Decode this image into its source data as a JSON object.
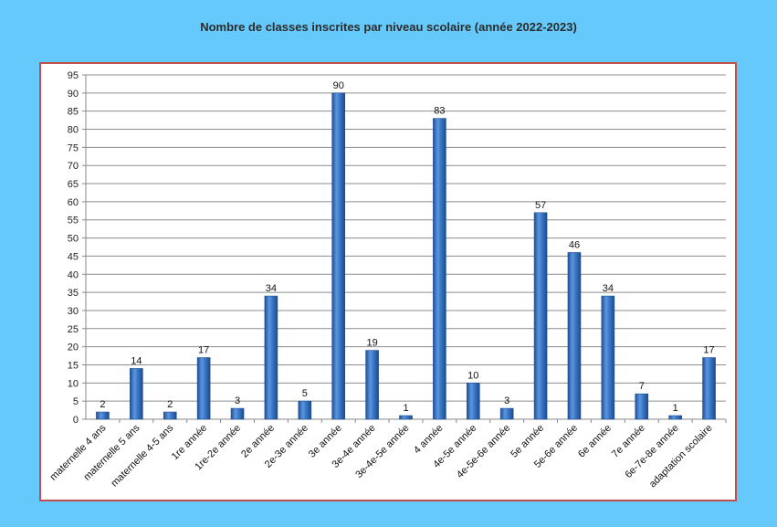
{
  "chart_data": {
    "type": "bar",
    "title": "Nombre de classes inscrites par niveau scolaire (année 2022-2023)",
    "xlabel": "",
    "ylabel": "",
    "ylim": [
      0,
      95
    ],
    "ytick_step": 5,
    "grid": true,
    "categories": [
      "maternelle 4 ans",
      "maternelle 5 ans",
      "maternelle 4-5 ans",
      "1re année",
      "1re-2e année",
      "2e année",
      "2e-3e année",
      "3e année",
      "3e-4e année",
      "3e-4e-5e année",
      "4 année",
      "4e-5e année",
      "4e-5e-6e année",
      "5e année",
      "5e-6e année",
      "6e année",
      "7e année",
      "6e-7e-8e année",
      "adaptation scolaire"
    ],
    "values": [
      2,
      14,
      2,
      17,
      3,
      34,
      5,
      90,
      19,
      1,
      83,
      10,
      3,
      57,
      46,
      34,
      7,
      1,
      17
    ],
    "colors": {
      "bar": "#3a78c7",
      "bar_dark": "#1f4f94",
      "frame": "#c0504d",
      "background": "#66c9fb"
    }
  }
}
